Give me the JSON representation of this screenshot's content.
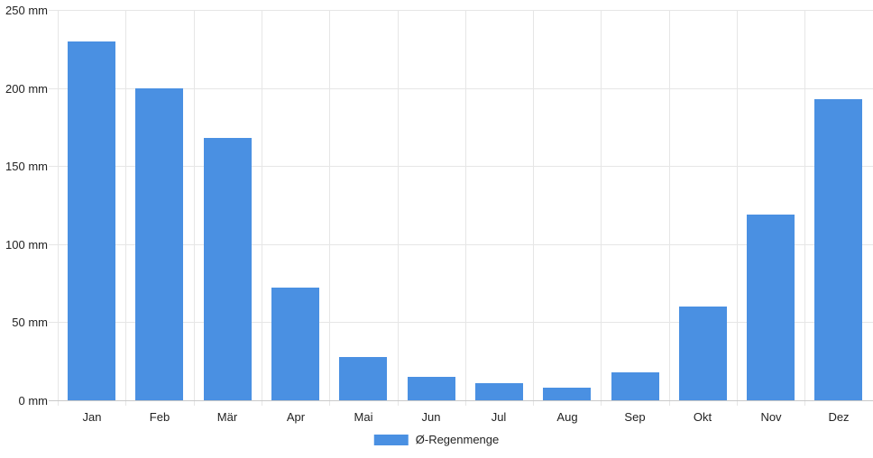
{
  "chart_data": {
    "type": "bar",
    "title": "",
    "categories": [
      "Jan",
      "Feb",
      "Mär",
      "Apr",
      "Mai",
      "Jun",
      "Jul",
      "Aug",
      "Sep",
      "Okt",
      "Nov",
      "Dez"
    ],
    "series": [
      {
        "name": "Ø-Regenmenge",
        "color": "#4a90e2",
        "values": [
          230,
          200,
          168,
          72,
          28,
          15,
          11,
          8,
          18,
          60,
          119,
          193
        ]
      }
    ],
    "xlabel": "",
    "ylabel": "mm",
    "ylim": [
      0,
      250
    ],
    "y_ticks": [
      0,
      50,
      100,
      150,
      200,
      250
    ],
    "y_tick_labels": [
      "0 mm",
      "50 mm",
      "100 mm",
      "150 mm",
      "200 mm",
      "250 mm"
    ],
    "grid": true,
    "legend_position": "bottom",
    "colors": {
      "bar": "#4a90e2",
      "gridline": "#e6e6e6",
      "axis_line": "#c9c9c9",
      "label_text": "#222222",
      "background": "#ffffff"
    }
  }
}
